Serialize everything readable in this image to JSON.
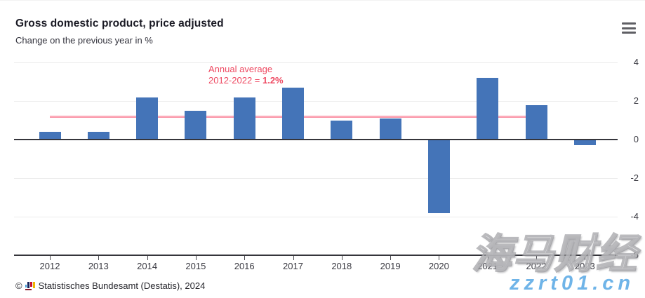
{
  "header": {
    "title": "Gross domestic product, price adjusted",
    "subtitle": "Change on the previous year in %"
  },
  "menu": {
    "icon": "hamburger-menu-icon"
  },
  "chart_data": {
    "type": "bar",
    "title": "Gross domestic product, price adjusted",
    "subtitle": "Change on the previous year in %",
    "unit": "%",
    "categories": [
      "2012",
      "2013",
      "2014",
      "2015",
      "2016",
      "2017",
      "2018",
      "2019",
      "2020",
      "2021",
      "2022",
      "2023"
    ],
    "values": [
      0.4,
      0.4,
      2.2,
      1.5,
      2.2,
      2.7,
      1.0,
      1.1,
      -3.8,
      3.2,
      1.8,
      -0.3
    ],
    "bar_color": "#4474b8",
    "yticks": [
      4,
      2,
      0,
      -2,
      -4,
      -6
    ],
    "ylim": [
      -6,
      4
    ],
    "grid": "horizontal-light",
    "y_axis_side": "right",
    "legend": "none",
    "average_line": {
      "value": 1.2,
      "span_categories": [
        "2012",
        "2022"
      ],
      "color": "#f77f95",
      "label_line1": "Annual average",
      "label_line2_prefix": "2012-2022 = ",
      "label_value": "1.2%",
      "label_color": "#ee4a62"
    }
  },
  "footer": {
    "copyright": "©",
    "source": "Statistisches Bundesamt (Destatis), 2024"
  },
  "watermark": {
    "text": "海马财经",
    "url": "zzrt01.cn"
  }
}
